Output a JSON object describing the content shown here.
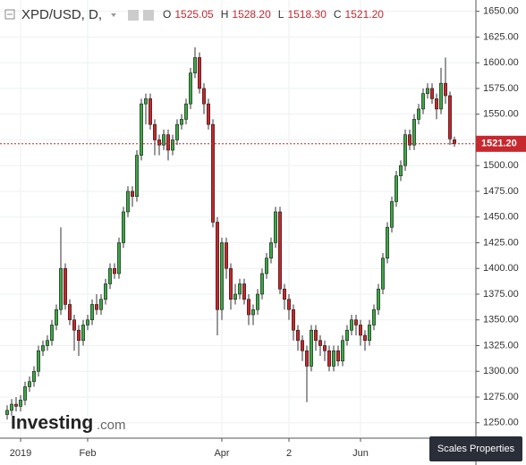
{
  "chart_data": {
    "type": "candlestick",
    "symbol": "XPD/USD, D,",
    "ohlc_legend": [
      {
        "key": "O",
        "text": "1525.05"
      },
      {
        "key": "H",
        "text": "1528.20"
      },
      {
        "key": "L",
        "text": "1518.30"
      },
      {
        "key": "C",
        "text": "1521.20"
      }
    ],
    "last_price": {
      "value": 1521.2,
      "label": "1521.20"
    },
    "up_color": "#3fa648",
    "down_color": "#c6282e",
    "open": [
      1258,
      1262,
      1268,
      1266,
      1272,
      1285,
      1290,
      1300,
      1320,
      1325,
      1330,
      1345,
      1360,
      1400,
      1365,
      1350,
      1340,
      1330,
      1345,
      1350,
      1365,
      1360,
      1370,
      1385,
      1400,
      1395,
      1425,
      1455,
      1475,
      1470,
      1510,
      1560,
      1565,
      1540,
      1525,
      1520,
      1530,
      1515,
      1525,
      1540,
      1545,
      1560,
      1590,
      1605,
      1575,
      1560,
      1540,
      1445,
      1360,
      1425,
      1400,
      1370,
      1375,
      1385,
      1370,
      1355,
      1360,
      1375,
      1395,
      1410,
      1425,
      1455,
      1380,
      1370,
      1360,
      1340,
      1330,
      1320,
      1305,
      1340,
      1330,
      1325,
      1320,
      1305,
      1320,
      1310,
      1330,
      1340,
      1350,
      1345,
      1335,
      1330,
      1345,
      1360,
      1380,
      1410,
      1440,
      1465,
      1490,
      1500,
      1530,
      1520,
      1545,
      1555,
      1570,
      1575,
      1565,
      1555,
      1580,
      1568,
      1525.05
    ],
    "high": [
      1267,
      1273,
      1275,
      1277,
      1290,
      1295,
      1305,
      1325,
      1330,
      1335,
      1350,
      1365,
      1440,
      1405,
      1370,
      1355,
      1345,
      1350,
      1355,
      1370,
      1375,
      1375,
      1390,
      1405,
      1405,
      1430,
      1460,
      1480,
      1480,
      1515,
      1565,
      1570,
      1570,
      1545,
      1530,
      1535,
      1535,
      1530,
      1545,
      1550,
      1565,
      1595,
      1615,
      1610,
      1580,
      1565,
      1545,
      1450,
      1430,
      1430,
      1405,
      1385,
      1390,
      1390,
      1375,
      1365,
      1380,
      1400,
      1415,
      1430,
      1460,
      1460,
      1385,
      1375,
      1365,
      1345,
      1335,
      1325,
      1345,
      1345,
      1335,
      1330,
      1325,
      1325,
      1325,
      1335,
      1345,
      1355,
      1355,
      1350,
      1340,
      1350,
      1365,
      1385,
      1415,
      1445,
      1470,
      1495,
      1505,
      1535,
      1535,
      1550,
      1560,
      1575,
      1580,
      1580,
      1570,
      1595,
      1605,
      1572,
      1528.2
    ],
    "low": [
      1253,
      1257,
      1261,
      1261,
      1267,
      1280,
      1285,
      1295,
      1315,
      1320,
      1325,
      1340,
      1355,
      1360,
      1345,
      1320,
      1315,
      1325,
      1340,
      1345,
      1355,
      1355,
      1365,
      1380,
      1390,
      1390,
      1420,
      1450,
      1460,
      1465,
      1505,
      1540,
      1535,
      1510,
      1510,
      1515,
      1505,
      1510,
      1520,
      1535,
      1540,
      1555,
      1585,
      1570,
      1550,
      1535,
      1440,
      1335,
      1350,
      1390,
      1360,
      1365,
      1370,
      1365,
      1345,
      1345,
      1355,
      1370,
      1390,
      1405,
      1420,
      1375,
      1360,
      1350,
      1330,
      1320,
      1310,
      1270,
      1300,
      1320,
      1315,
      1310,
      1300,
      1300,
      1305,
      1305,
      1325,
      1335,
      1335,
      1325,
      1320,
      1325,
      1340,
      1355,
      1375,
      1405,
      1435,
      1460,
      1485,
      1495,
      1515,
      1515,
      1540,
      1550,
      1565,
      1560,
      1545,
      1550,
      1560,
      1520,
      1518.3
    ],
    "close": [
      1262,
      1268,
      1266,
      1272,
      1285,
      1290,
      1300,
      1320,
      1325,
      1330,
      1345,
      1360,
      1400,
      1365,
      1350,
      1340,
      1330,
      1345,
      1350,
      1365,
      1360,
      1370,
      1385,
      1400,
      1395,
      1425,
      1455,
      1475,
      1470,
      1510,
      1560,
      1565,
      1540,
      1525,
      1520,
      1530,
      1515,
      1525,
      1540,
      1545,
      1560,
      1590,
      1605,
      1575,
      1560,
      1540,
      1445,
      1360,
      1425,
      1400,
      1370,
      1375,
      1385,
      1370,
      1355,
      1360,
      1375,
      1395,
      1410,
      1425,
      1455,
      1380,
      1370,
      1360,
      1340,
      1330,
      1320,
      1305,
      1340,
      1330,
      1325,
      1320,
      1305,
      1320,
      1310,
      1330,
      1340,
      1350,
      1345,
      1335,
      1330,
      1345,
      1360,
      1380,
      1410,
      1440,
      1465,
      1490,
      1500,
      1530,
      1520,
      1545,
      1555,
      1570,
      1575,
      1565,
      1555,
      1580,
      1568,
      1526,
      1521.2
    ],
    "xlim": [
      -1.6,
      104.8
    ],
    "xticks": [
      {
        "value": 3,
        "label": "2019"
      },
      {
        "value": 18,
        "label": "Feb"
      },
      {
        "value": 48,
        "label": "Apr"
      },
      {
        "value": 63,
        "label": "2"
      },
      {
        "value": 79,
        "label": "Jun"
      }
    ],
    "ylim": [
      1235,
      1661
    ],
    "yticks": [
      {
        "value": 1250,
        "label": "1250.00"
      },
      {
        "value": 1275,
        "label": "1275.00"
      },
      {
        "value": 1300,
        "label": "1300.00"
      },
      {
        "value": 1325,
        "label": "1325.00"
      },
      {
        "value": 1350,
        "label": "1350.00"
      },
      {
        "value": 1375,
        "label": "1375.00"
      },
      {
        "value": 1400,
        "label": "1400.00"
      },
      {
        "value": 1425,
        "label": "1425.00"
      },
      {
        "value": 1450,
        "label": "1450.00"
      },
      {
        "value": 1475,
        "label": "1475.00"
      },
      {
        "value": 1500,
        "label": "1500.00"
      },
      {
        "value": 1525,
        "label": "1525.00"
      },
      {
        "value": 1550,
        "label": "1550.00"
      },
      {
        "value": 1575,
        "label": "1575.00"
      },
      {
        "value": 1600,
        "label": "1600.00"
      },
      {
        "value": 1625,
        "label": "1625.00"
      },
      {
        "value": 1650,
        "label": "1650.00"
      }
    ],
    "grid": true,
    "logo": {
      "name": "Investing",
      "suffix": ".com"
    },
    "button": "Scales Properties"
  }
}
